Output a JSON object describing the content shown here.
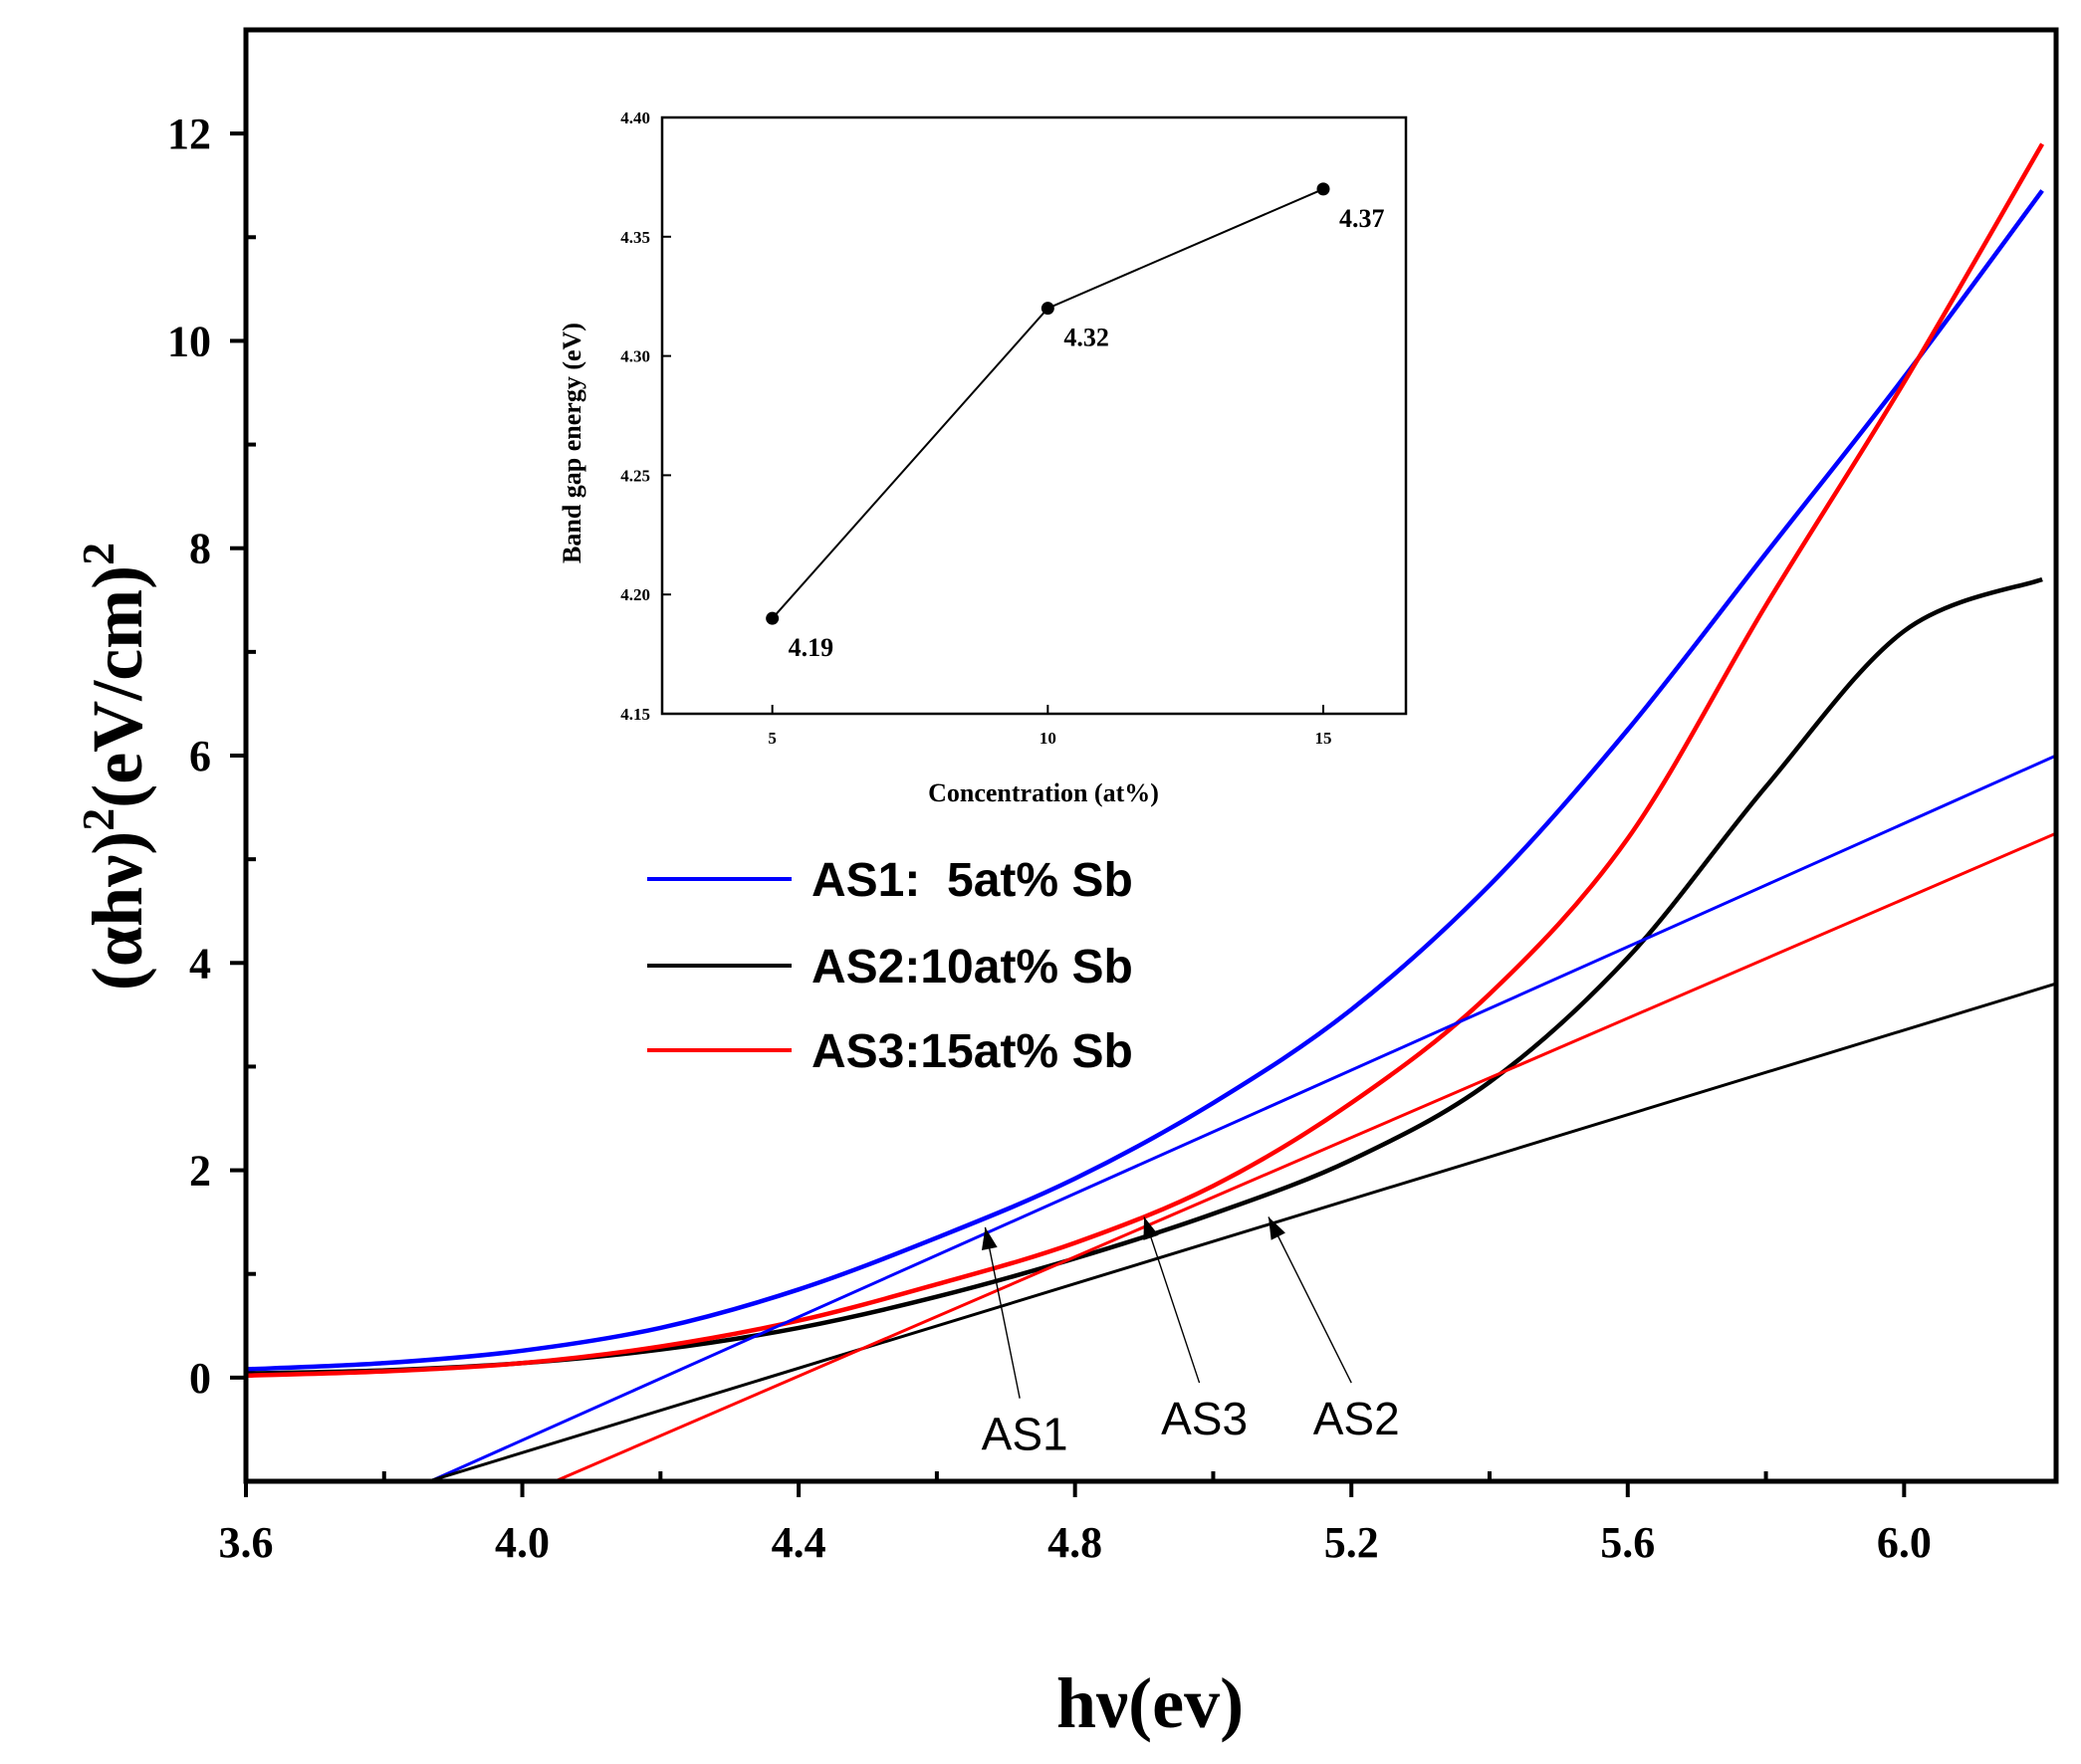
{
  "chart_data": [
    {
      "type": "line",
      "role": "main",
      "title": "",
      "xlabel": "hν(ev)",
      "ylabel_parts": [
        "(αhν)",
        "2",
        "(eV/cm)",
        "2"
      ],
      "xlim": [
        3.6,
        6.22
      ],
      "ylim": [
        -1.0,
        13.0
      ],
      "xticks": [
        3.6,
        4.0,
        4.4,
        4.8,
        5.2,
        5.6,
        6.0
      ],
      "xtick_labels": [
        "3.6",
        "4.0",
        "4.4",
        "4.8",
        "5.2",
        "5.6",
        "6.0"
      ],
      "yticks": [
        0,
        2,
        4,
        6,
        8,
        10,
        12
      ],
      "ytick_labels": [
        "0",
        "2",
        "4",
        "6",
        "8",
        "10",
        "12"
      ],
      "x": [
        3.6,
        3.8,
        4.0,
        4.2,
        4.4,
        4.6,
        4.8,
        5.0,
        5.2,
        5.4,
        5.6,
        5.8,
        6.0,
        6.2
      ],
      "series": [
        {
          "name": "AS1",
          "color": "#0000ff",
          "values": [
            0.08,
            0.14,
            0.26,
            0.48,
            0.85,
            1.35,
            1.92,
            2.65,
            3.55,
            4.75,
            6.25,
            7.95,
            9.65,
            11.45
          ]
        },
        {
          "name": "AS2",
          "color": "#000000",
          "values": [
            0.04,
            0.07,
            0.14,
            0.27,
            0.48,
            0.78,
            1.15,
            1.58,
            2.1,
            2.85,
            4.05,
            5.7,
            7.2,
            7.7
          ]
        },
        {
          "name": "AS3",
          "color": "#ff0000",
          "values": [
            0.02,
            0.06,
            0.14,
            0.3,
            0.55,
            0.9,
            1.3,
            1.85,
            2.65,
            3.7,
            5.2,
            7.45,
            9.6,
            11.9
          ]
        }
      ],
      "tangent_lines": [
        {
          "name": "AS1 fit",
          "color": "#0000ff",
          "x": [
            3.85,
            6.22
          ],
          "y": [
            -1.05,
            6.0
          ]
        },
        {
          "name": "AS2 fit",
          "color": "#000000",
          "x": [
            3.84,
            6.22
          ],
          "y": [
            -1.05,
            3.8
          ]
        },
        {
          "name": "AS3 fit",
          "color": "#ff0000",
          "x": [
            4.03,
            6.22
          ],
          "y": [
            -1.05,
            5.25
          ]
        }
      ],
      "legend": {
        "position": "center-left",
        "entries": [
          {
            "label": "AS1:  5at% Sb",
            "color": "#0000ff"
          },
          {
            "label": "AS2:10at% Sb",
            "color": "#000000"
          },
          {
            "label": "AS3:15at% Sb",
            "color": "#ff0000"
          }
        ]
      },
      "annotations": [
        {
          "text": "AS1",
          "from": [
            4.72,
            -0.2
          ],
          "to": [
            4.67,
            1.45
          ]
        },
        {
          "text": "AS3",
          "from": [
            4.98,
            -0.05
          ],
          "to": [
            4.9,
            1.55
          ]
        },
        {
          "text": "AS2",
          "from": [
            5.2,
            -0.05
          ],
          "to": [
            5.08,
            1.55
          ]
        }
      ]
    },
    {
      "type": "line",
      "role": "inset",
      "title": "",
      "xlabel": "Concentration (at%)",
      "ylabel": "Band gap energy (eV)",
      "xlim": [
        3,
        16.5
      ],
      "ylim": [
        4.15,
        4.4
      ],
      "xticks": [
        5,
        10,
        15
      ],
      "xtick_labels": [
        "5",
        "10",
        "15"
      ],
      "yticks": [
        4.15,
        4.2,
        4.25,
        4.3,
        4.35,
        4.4
      ],
      "ytick_labels": [
        "4.15",
        "4.20",
        "4.25",
        "4.30",
        "4.35",
        "4.40"
      ],
      "x": [
        5,
        10,
        15
      ],
      "values": [
        4.19,
        4.32,
        4.37
      ],
      "point_labels": [
        "4.19",
        "4.32",
        "4.37"
      ]
    }
  ]
}
